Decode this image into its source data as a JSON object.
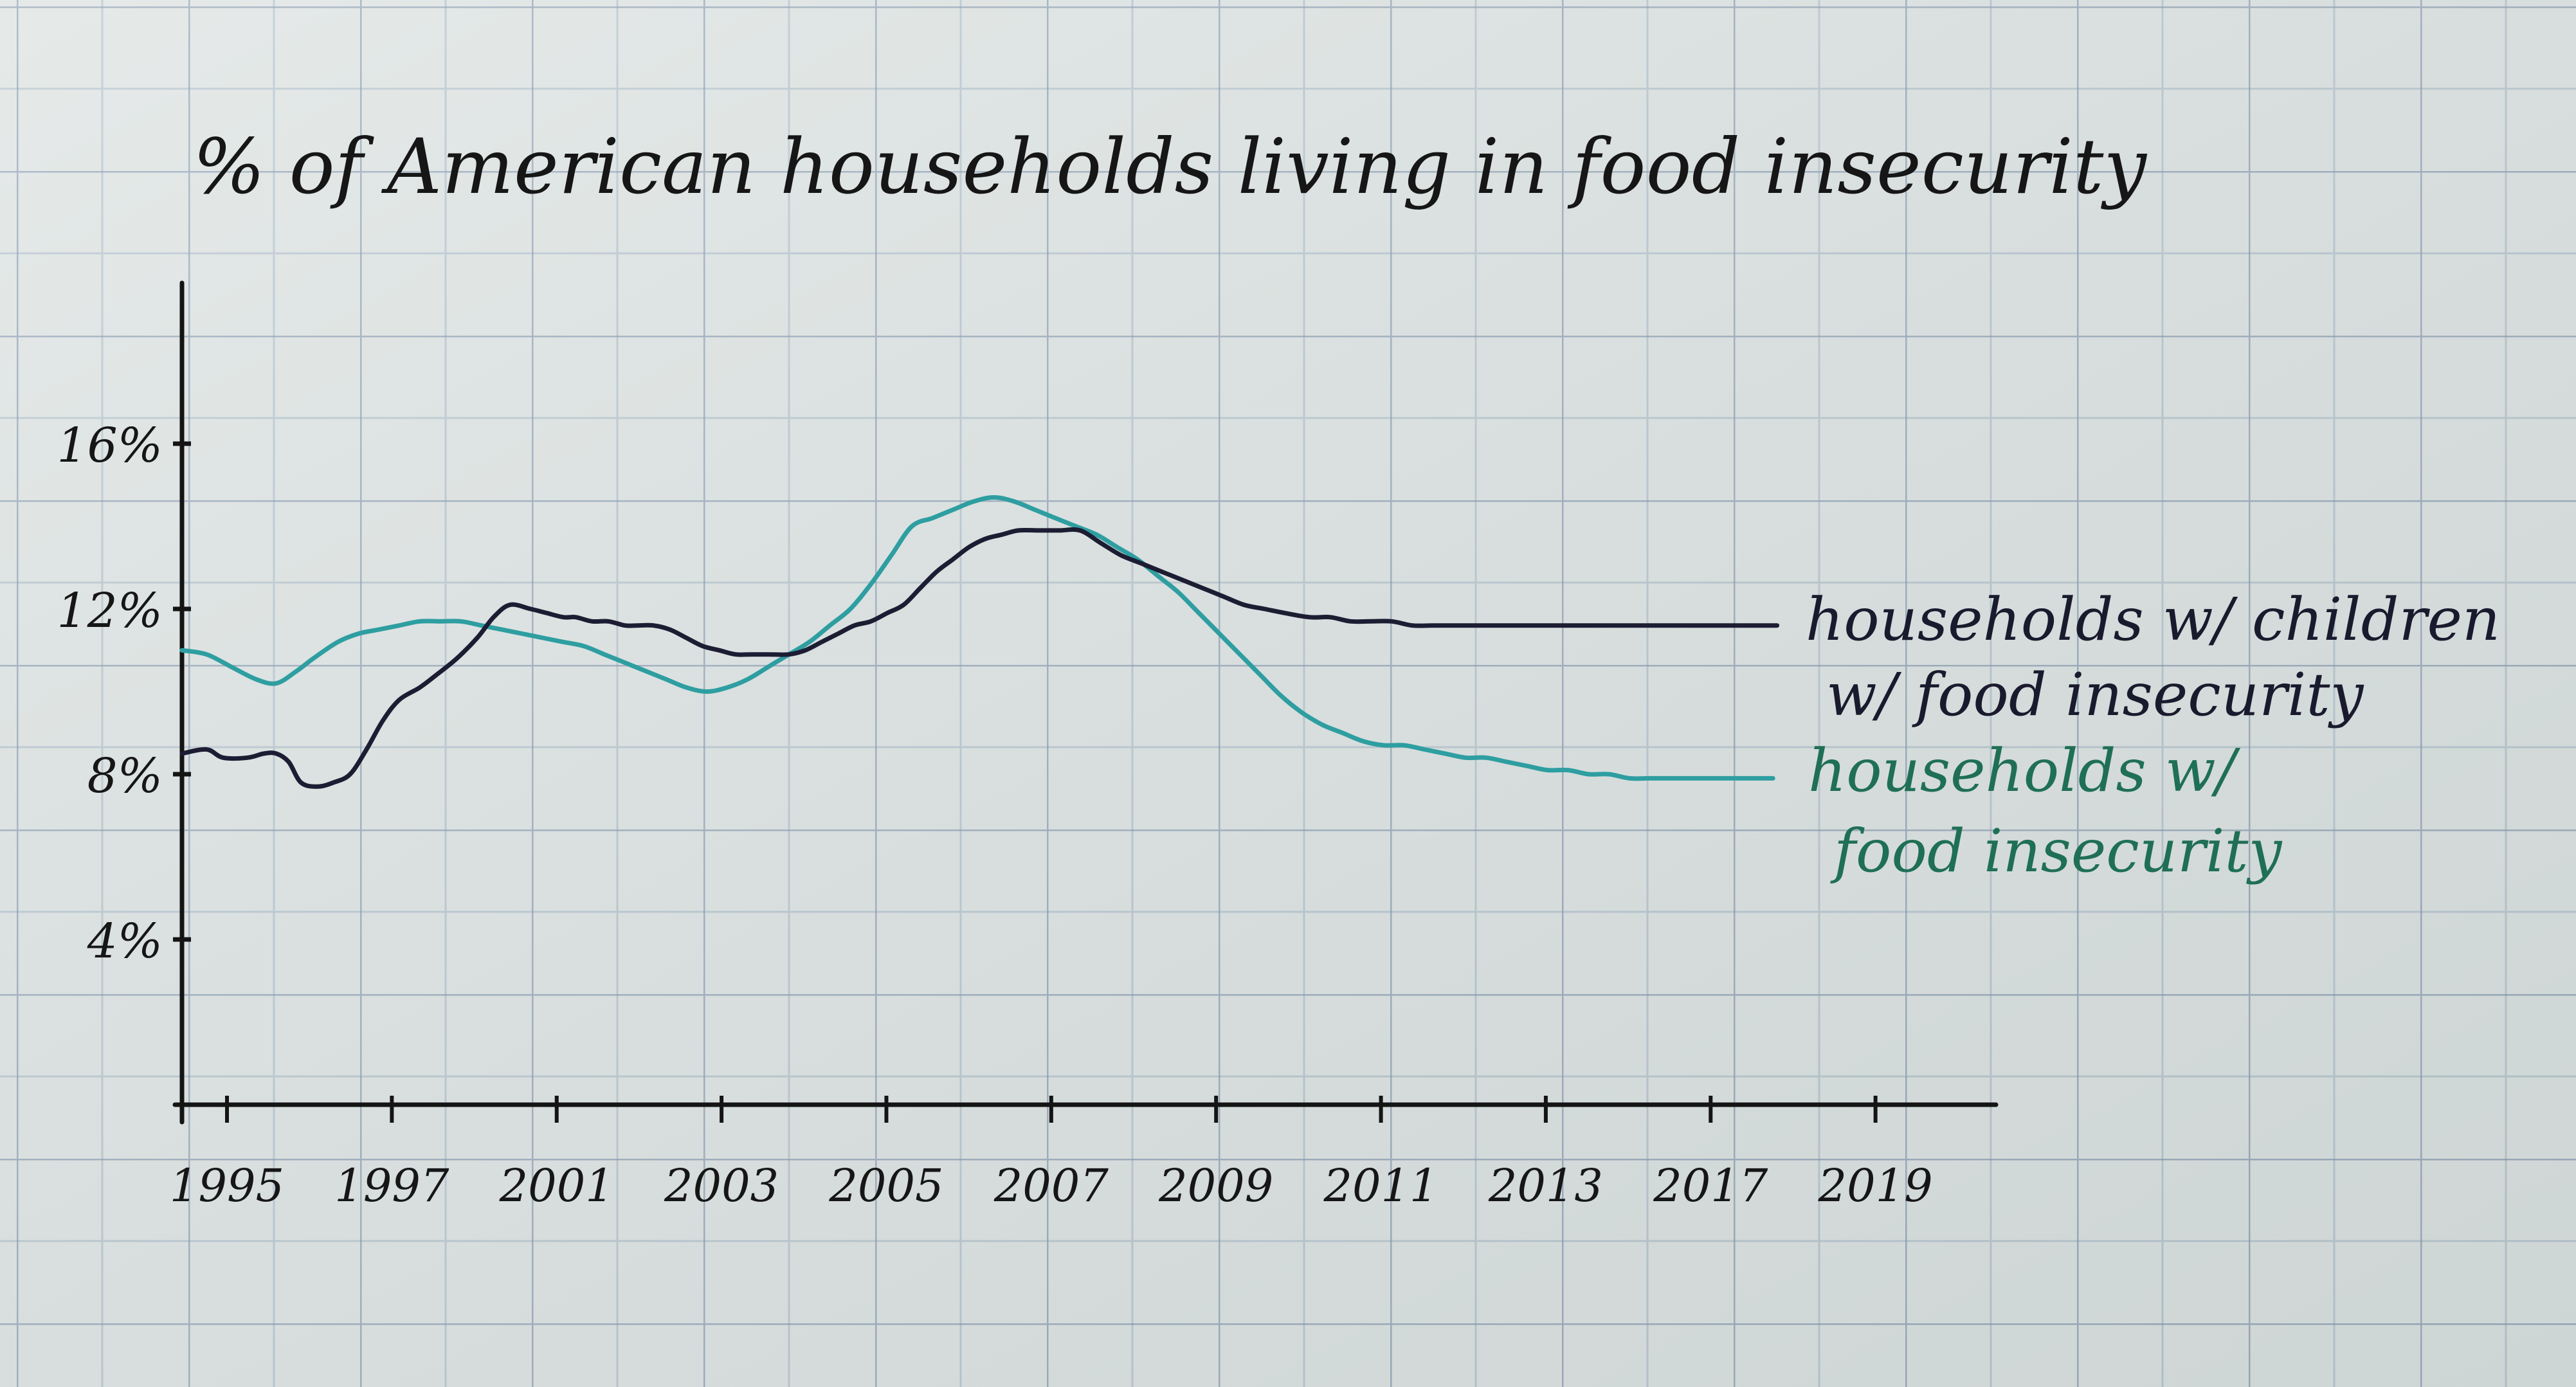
{
  "chart_data": {
    "type": "line",
    "title": "% of American households living in food insecurity",
    "x_tick_labels": [
      "1995",
      "1997",
      "2001",
      "2003",
      "2005",
      "2007",
      "2009",
      "2011",
      "2013",
      "2017",
      "2019"
    ],
    "y_tick_labels": [
      "4%",
      "8%",
      "12%",
      "16%"
    ],
    "y_ticks": [
      4,
      8,
      12,
      16
    ],
    "ylim": [
      0,
      16
    ],
    "grid": true,
    "series": [
      {
        "name": "households w/ children w/ food insecurity",
        "color": "#1c1d33",
        "x": [
          0,
          0.6,
          1.0,
          1.6,
          2.0,
          2.3,
          2.6,
          2.9,
          3.3,
          3.7,
          4.1,
          4.5,
          4.9,
          5.3,
          5.8,
          6.2,
          6.7,
          7.2,
          7.6,
          8.0,
          8.5,
          8.9,
          9.3,
          9.6,
          10.0,
          10.4,
          10.8,
          11.1,
          11.5,
          11.9,
          12.3,
          12.7,
          13.1,
          13.5,
          13.9,
          14.3,
          14.8,
          15.2,
          15.6,
          16.0,
          16.4,
          16.8,
          17.2,
          17.6,
          18.0,
          18.4,
          18.8,
          19.2,
          19.6,
          20.0,
          20.4,
          20.9,
          21.4,
          21.9,
          22.4,
          22.9,
          23.4,
          23.9,
          24.4,
          24.9,
          25.4,
          25.9,
          26.4,
          26.9,
          27.5,
          28.0,
          28.5,
          29.0,
          29.5,
          30.0,
          30.5,
          31.0,
          31.5,
          32.0,
          32.5,
          33.0,
          33.5,
          34.0,
          34.5,
          35.0,
          35.5,
          36.0,
          36.5,
          37.0,
          37.5,
          38.0,
          38.5,
          38.9
        ],
        "values": [
          8.5,
          8.6,
          8.4,
          8.4,
          8.5,
          8.5,
          8.3,
          7.8,
          7.7,
          7.8,
          8.0,
          8.6,
          9.3,
          9.8,
          10.1,
          10.4,
          10.8,
          11.3,
          11.8,
          12.1,
          12.0,
          11.9,
          11.8,
          11.8,
          11.7,
          11.7,
          11.6,
          11.6,
          11.6,
          11.5,
          11.3,
          11.1,
          11.0,
          10.9,
          10.9,
          10.9,
          10.9,
          11.0,
          11.2,
          11.4,
          11.6,
          11.7,
          11.9,
          12.1,
          12.5,
          12.9,
          13.2,
          13.5,
          13.7,
          13.8,
          13.9,
          13.9,
          13.9,
          13.9,
          13.6,
          13.3,
          13.1,
          12.9,
          12.7,
          12.5,
          12.3,
          12.1,
          12.0,
          11.9,
          11.8,
          11.8,
          11.7,
          11.7,
          11.7,
          11.6,
          11.6,
          11.6,
          11.6,
          11.6,
          11.6,
          11.6,
          11.6,
          11.6,
          11.6,
          11.6,
          11.6,
          11.6,
          11.6,
          11.6,
          11.6,
          11.6,
          11.6,
          11.6
        ]
      },
      {
        "name": "households w/ food insecurity",
        "color": "#2e9ea1",
        "x": [
          0,
          0.6,
          1.2,
          1.8,
          2.3,
          2.8,
          3.2,
          3.8,
          4.3,
          4.8,
          5.3,
          5.8,
          6.3,
          6.8,
          7.3,
          7.8,
          8.3,
          8.8,
          9.3,
          9.8,
          10.3,
          10.8,
          11.3,
          11.8,
          12.3,
          12.8,
          13.3,
          13.8,
          14.3,
          14.8,
          15.3,
          15.8,
          16.3,
          16.8,
          17.3,
          17.8,
          18.3,
          18.8,
          19.3,
          19.8,
          20.3,
          20.8,
          21.3,
          21.8,
          22.3,
          22.8,
          23.3,
          23.8,
          24.3,
          24.8,
          25.3,
          25.8,
          26.3,
          26.8,
          27.3,
          27.8,
          28.3,
          28.8,
          29.3,
          29.8,
          30.3,
          30.8,
          31.3,
          31.8,
          32.3,
          32.8,
          33.3,
          33.8,
          34.3,
          34.8,
          35.3,
          35.8,
          36.3,
          36.8,
          37.3,
          37.8,
          38.3,
          38.8
        ],
        "values": [
          11.0,
          10.9,
          10.6,
          10.3,
          10.2,
          10.5,
          10.8,
          11.2,
          11.4,
          11.5,
          11.6,
          11.7,
          11.7,
          11.7,
          11.6,
          11.5,
          11.4,
          11.3,
          11.2,
          11.1,
          10.9,
          10.7,
          10.5,
          10.3,
          10.1,
          10.0,
          10.1,
          10.3,
          10.6,
          10.9,
          11.2,
          11.6,
          12.0,
          12.6,
          13.3,
          14.0,
          14.2,
          14.4,
          14.6,
          14.7,
          14.6,
          14.4,
          14.2,
          14.0,
          13.8,
          13.5,
          13.2,
          12.8,
          12.4,
          11.9,
          11.4,
          10.9,
          10.4,
          9.9,
          9.5,
          9.2,
          9.0,
          8.8,
          8.7,
          8.7,
          8.6,
          8.5,
          8.4,
          8.4,
          8.3,
          8.2,
          8.1,
          8.1,
          8.0,
          8.0,
          7.9,
          7.9,
          7.9,
          7.9,
          7.9,
          7.9,
          7.9,
          7.9
        ]
      }
    ]
  }
}
